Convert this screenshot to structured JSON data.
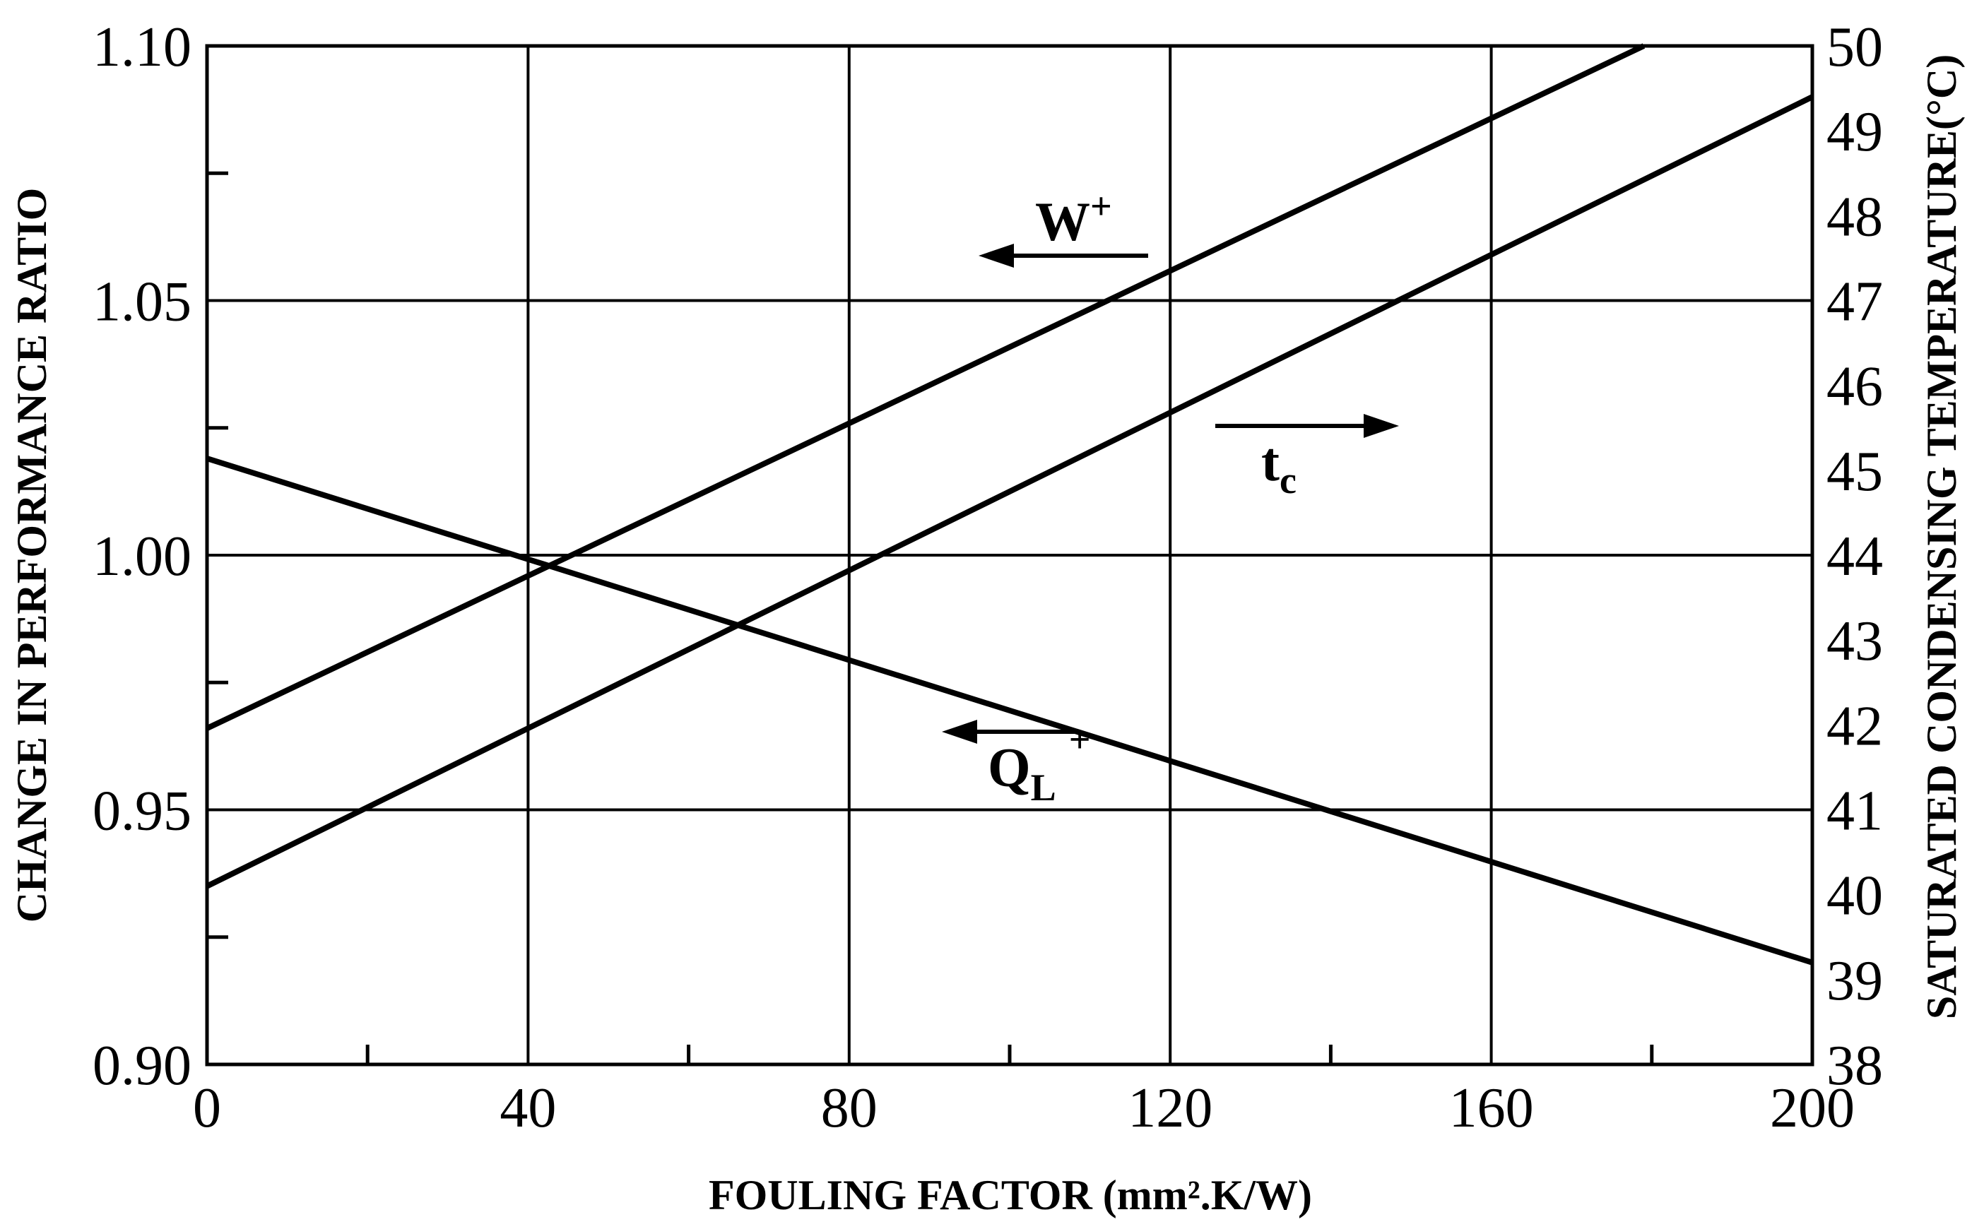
{
  "chart_data": {
    "type": "line",
    "xlabel": "FOULING FACTOR (mm².K/W)",
    "ylabel": "CHANGE IN PERFORMANCE RATIO",
    "y2label": "SATURATED CONDENSING TEMPERATURE(°C)",
    "xlim": [
      0,
      200
    ],
    "ylim": [
      0.9,
      1.1
    ],
    "y2lim": [
      38,
      50
    ],
    "x_ticks": [
      "0",
      "40",
      "80",
      "120",
      "160",
      "200"
    ],
    "y_ticks": [
      "0.90",
      "0.95",
      "1.00",
      "1.05",
      "1.10"
    ],
    "y2_ticks": [
      "38",
      "39",
      "40",
      "41",
      "42",
      "43",
      "44",
      "45",
      "46",
      "47",
      "48",
      "49",
      "50"
    ],
    "grid": true,
    "series": [
      {
        "name": "W+",
        "axis": "left",
        "x": [
          0,
          179
        ],
        "values": [
          0.966,
          1.1
        ]
      },
      {
        "name": "tc",
        "axis": "right",
        "x": [
          0,
          200
        ],
        "values": [
          40.1,
          49.4
        ]
      },
      {
        "name": "QL+",
        "axis": "left",
        "x": [
          0,
          200
        ],
        "values": [
          1.019,
          0.92
        ]
      }
    ],
    "annotations": [
      {
        "main": "W",
        "sup": "+",
        "arrow": "left"
      },
      {
        "main": "t",
        "sub": "c",
        "arrow": "right"
      },
      {
        "main": "Q",
        "sub": "L",
        "sup": "+",
        "arrow": "left"
      }
    ]
  }
}
